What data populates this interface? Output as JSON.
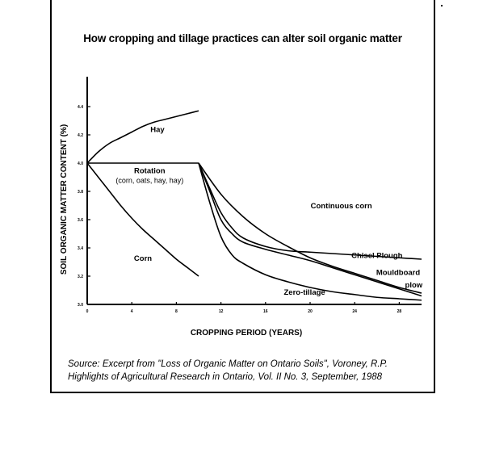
{
  "title": "How cropping and tillage practices can alter soil organic matter",
  "source_line1": "Source: Excerpt from \"Loss of Organic Matter on Ontario Soils\", Voroney, R.P.",
  "source_line2": "Highlights of Agricultural Research in Ontario, Vol. II No. 3, September, 1988",
  "chart_data": {
    "type": "line",
    "title": "How cropping and tillage practices can alter soil organic matter",
    "xlabel": "CROPPING PERIOD (YEARS)",
    "ylabel": "SOIL ORGANIC MATTER CONTENT (%)",
    "xlim": [
      0,
      30
    ],
    "ylim": [
      3.0,
      4.6
    ],
    "x_ticks": [
      0,
      4,
      8,
      12,
      16,
      20,
      24,
      28
    ],
    "y_ticks": [
      3.0,
      3.2,
      3.4,
      3.6,
      3.8,
      4.0,
      4.2,
      4.4
    ],
    "y_tick_labels": [
      "3.0",
      "3.2",
      "3.4",
      "3.6",
      "3.8",
      "4.0",
      "4.2",
      "4.4"
    ],
    "series": [
      {
        "name": "Hay",
        "x": [
          0,
          1,
          2,
          3,
          4,
          5,
          6,
          7,
          8,
          9,
          10
        ],
        "y": [
          4.0,
          4.08,
          4.14,
          4.18,
          4.22,
          4.26,
          4.29,
          4.31,
          4.33,
          4.35,
          4.37
        ]
      },
      {
        "name": "Corn",
        "x": [
          0,
          1,
          2,
          3,
          4,
          5,
          6,
          7,
          8,
          9,
          10
        ],
        "y": [
          4.0,
          3.9,
          3.8,
          3.7,
          3.61,
          3.53,
          3.46,
          3.39,
          3.32,
          3.26,
          3.2
        ]
      },
      {
        "name": "Rotation",
        "label_sub": "(corn, oats, hay, hay)",
        "x": [
          0,
          10
        ],
        "y": [
          4.0,
          4.0
        ]
      },
      {
        "name": "Continuous corn",
        "x": [
          10,
          12,
          14,
          16,
          18,
          20,
          22,
          24,
          26,
          28,
          30
        ],
        "y": [
          4.0,
          3.78,
          3.62,
          3.5,
          3.41,
          3.33,
          3.27,
          3.22,
          3.17,
          3.12,
          3.08
        ]
      },
      {
        "name": "Chisel Plough",
        "x": [
          10,
          11,
          12,
          13,
          14,
          16,
          18,
          20,
          22,
          24,
          26,
          28,
          30
        ],
        "y": [
          4.0,
          3.82,
          3.65,
          3.54,
          3.47,
          3.41,
          3.38,
          3.37,
          3.36,
          3.35,
          3.34,
          3.33,
          3.32
        ]
      },
      {
        "name": "Mouldboard plow",
        "x": [
          10,
          11,
          12,
          13,
          14,
          16,
          18,
          20,
          22,
          24,
          26,
          28,
          30
        ],
        "y": [
          4.0,
          3.8,
          3.6,
          3.5,
          3.44,
          3.39,
          3.35,
          3.31,
          3.26,
          3.21,
          3.16,
          3.11,
          3.06
        ]
      },
      {
        "name": "Zero-tillage",
        "x": [
          10,
          11,
          12,
          13,
          14,
          16,
          18,
          20,
          22,
          24,
          26,
          28,
          30
        ],
        "y": [
          4.0,
          3.72,
          3.48,
          3.35,
          3.29,
          3.21,
          3.16,
          3.12,
          3.09,
          3.07,
          3.05,
          3.04,
          3.03
        ]
      }
    ],
    "labels": [
      {
        "text": "Hay",
        "x": 6.3,
        "y": 4.22
      },
      {
        "text": "Rotation",
        "x": 5.6,
        "y": 3.93
      },
      {
        "text": "(corn, oats, hay, hay)",
        "x": 5.6,
        "y": 3.86
      },
      {
        "text": "Continuous corn",
        "x": 22.8,
        "y": 3.68
      },
      {
        "text": "Corn",
        "x": 5.0,
        "y": 3.31
      },
      {
        "text": "Chisel Plough",
        "x": 26.0,
        "y": 3.33
      },
      {
        "text": "Mouldboard",
        "x": 27.9,
        "y": 3.21
      },
      {
        "text": "plow",
        "x": 29.3,
        "y": 3.12
      },
      {
        "text": "Zero-tillage",
        "x": 19.5,
        "y": 3.07
      }
    ],
    "grid": false
  }
}
